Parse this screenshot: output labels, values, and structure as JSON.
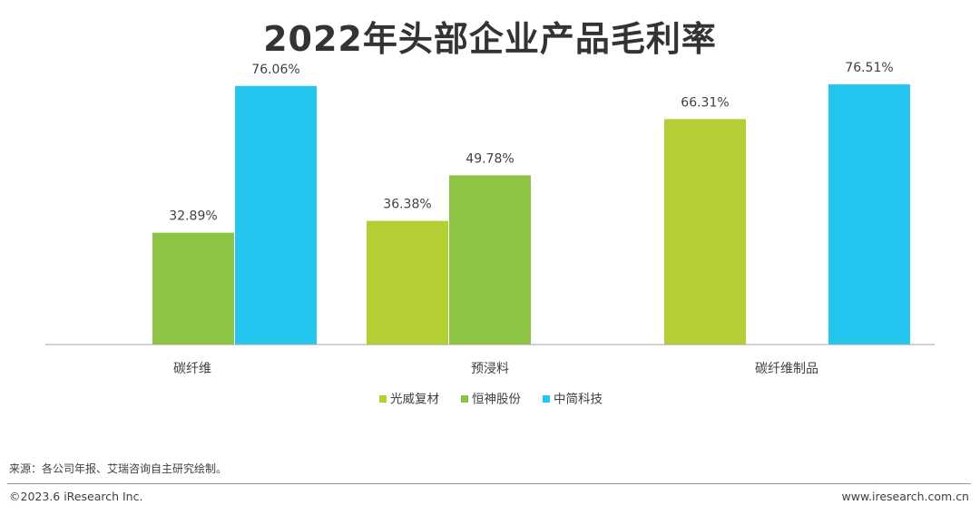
{
  "chart_data": {
    "type": "bar",
    "title": "2022年头部企业产品毛利率",
    "xlabel": "",
    "ylabel": "",
    "ylim": [
      0,
      80
    ],
    "grid": false,
    "legend_position": "bottom",
    "categories": [
      "碳纤维",
      "预浸料",
      "碳纤维制品"
    ],
    "series": [
      {
        "name": "光威复材",
        "color": "#b3cf33",
        "values": [
          null,
          36.38,
          66.31
        ],
        "labels": [
          "",
          "36.38%",
          "66.31%"
        ]
      },
      {
        "name": "恒神股份",
        "color": "#8dc443",
        "values": [
          32.89,
          49.78,
          null
        ],
        "labels": [
          "32.89%",
          "49.78%",
          ""
        ]
      },
      {
        "name": "中简科技",
        "color": "#22c6ef",
        "values": [
          76.06,
          null,
          76.51
        ],
        "labels": [
          "76.06%",
          "",
          "76.51%"
        ]
      }
    ]
  },
  "footer": {
    "source": "来源：各公司年报、艾瑞咨询自主研究绘制。",
    "copyright": "©2023.6 iResearch Inc.",
    "website": "www.iresearch.com.cn"
  }
}
